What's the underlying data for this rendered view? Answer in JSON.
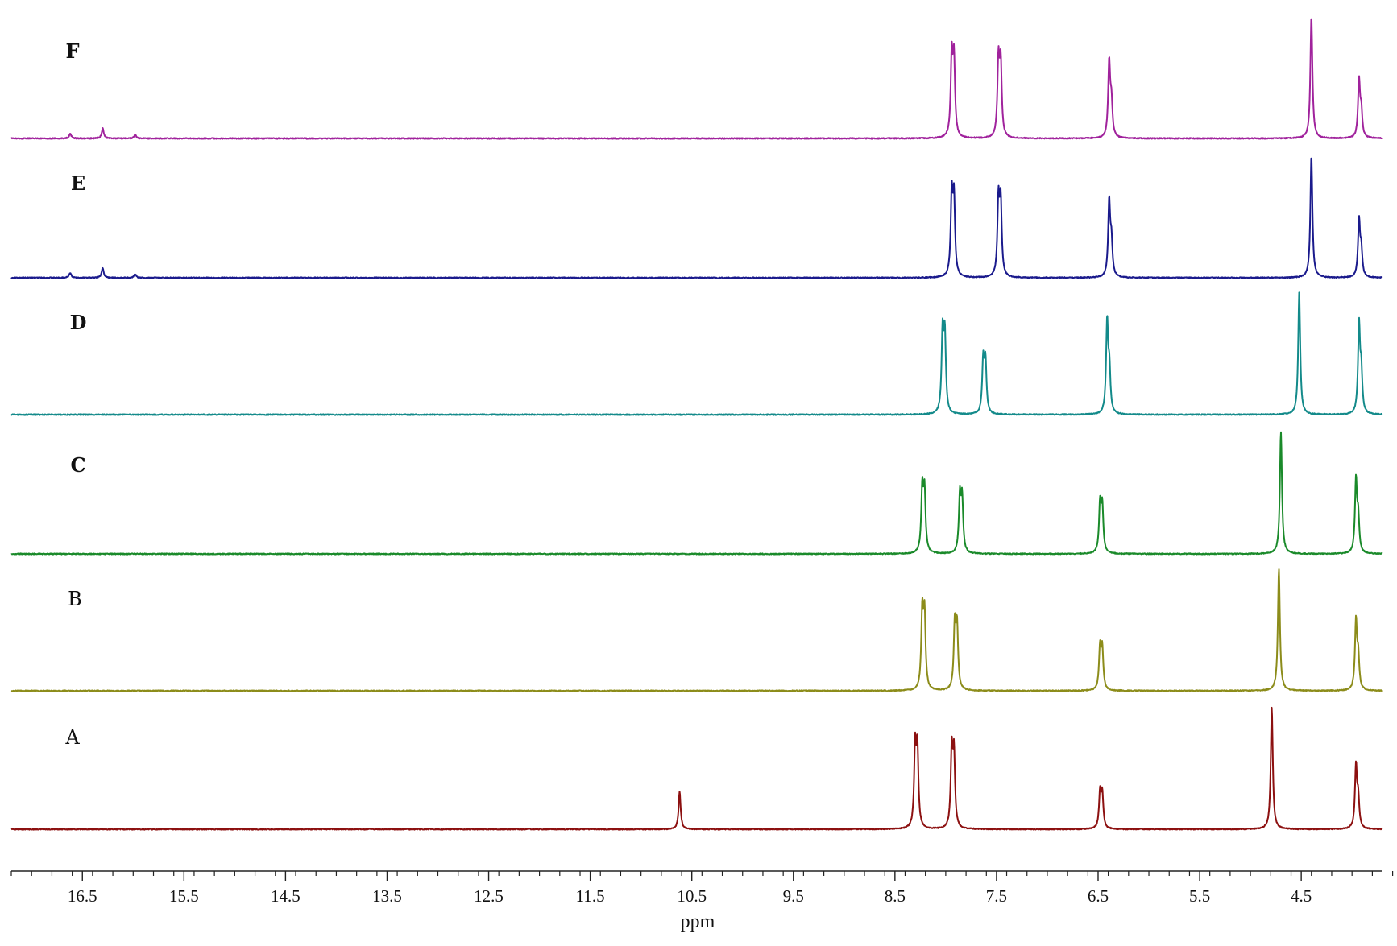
{
  "chart_data": {
    "type": "line",
    "xlabel": "ppm",
    "xlim": [
      17.2,
      3.7
    ],
    "x_reversed": true,
    "x_tick_labels": [
      "16.5",
      "15.5",
      "14.5",
      "13.5",
      "12.5",
      "11.5",
      "10.5",
      "9.5",
      "8.5",
      "7.5",
      "6.5",
      "5.5",
      "4.5"
    ],
    "x_tick_values": [
      16.5,
      15.5,
      14.5,
      13.5,
      12.5,
      11.5,
      10.5,
      9.5,
      8.5,
      7.5,
      6.5,
      5.5,
      4.5
    ],
    "x_minor_tick_step": 0.2,
    "grid": false,
    "legend": "none",
    "series": [
      {
        "name": "F",
        "color": "#a0229c",
        "bold_label": true,
        "peaks": [
          {
            "ppm": 16.62,
            "intensity": 0.04
          },
          {
            "ppm": 16.3,
            "intensity": 0.08
          },
          {
            "ppm": 15.98,
            "intensity": 0.03
          },
          {
            "ppm": 7.93,
            "intensity": 0.63,
            "doublet": true
          },
          {
            "ppm": 7.47,
            "intensity": 0.6,
            "doublet": true
          },
          {
            "ppm": 6.38,
            "intensity": 0.6,
            "doublet": true,
            "asymmetric": true
          },
          {
            "ppm": 4.4,
            "intensity": 0.98
          },
          {
            "ppm": 3.92,
            "intensity": 0.45,
            "doublet": true,
            "asymmetric": true
          }
        ]
      },
      {
        "name": "E",
        "color": "#1a1a8c",
        "bold_label": true,
        "peaks": [
          {
            "ppm": 16.62,
            "intensity": 0.04
          },
          {
            "ppm": 16.3,
            "intensity": 0.08
          },
          {
            "ppm": 15.98,
            "intensity": 0.03
          },
          {
            "ppm": 7.93,
            "intensity": 0.63,
            "doublet": true
          },
          {
            "ppm": 7.47,
            "intensity": 0.6,
            "doublet": true
          },
          {
            "ppm": 6.38,
            "intensity": 0.6,
            "doublet": true,
            "asymmetric": true
          },
          {
            "ppm": 4.4,
            "intensity": 0.98
          },
          {
            "ppm": 3.92,
            "intensity": 0.45,
            "doublet": true,
            "asymmetric": true
          }
        ]
      },
      {
        "name": "D",
        "color": "#138a8a",
        "bold_label": true,
        "peaks": [
          {
            "ppm": 8.02,
            "intensity": 0.63,
            "doublet": true
          },
          {
            "ppm": 7.62,
            "intensity": 0.42,
            "doublet": true
          },
          {
            "ppm": 6.4,
            "intensity": 0.73,
            "doublet": true,
            "asymmetric": true
          },
          {
            "ppm": 4.52,
            "intensity": 0.98
          },
          {
            "ppm": 3.92,
            "intensity": 0.7,
            "doublet": true,
            "asymmetric": true
          }
        ]
      },
      {
        "name": "C",
        "color": "#1a8a2a",
        "bold_label": true,
        "peaks": [
          {
            "ppm": 8.22,
            "intensity": 0.5,
            "doublet": true
          },
          {
            "ppm": 7.85,
            "intensity": 0.44,
            "doublet": true
          },
          {
            "ppm": 6.47,
            "intensity": 0.38,
            "doublet": true
          },
          {
            "ppm": 4.7,
            "intensity": 0.98
          },
          {
            "ppm": 3.95,
            "intensity": 0.58,
            "doublet": true,
            "asymmetric": true
          }
        ]
      },
      {
        "name": "B",
        "color": "#8c8c1a",
        "bold_label": false,
        "peaks": [
          {
            "ppm": 8.22,
            "intensity": 0.61,
            "doublet": true
          },
          {
            "ppm": 7.9,
            "intensity": 0.51,
            "doublet": true
          },
          {
            "ppm": 6.47,
            "intensity": 0.33,
            "doublet": true
          },
          {
            "ppm": 4.72,
            "intensity": 0.98
          },
          {
            "ppm": 3.95,
            "intensity": 0.55,
            "doublet": true,
            "asymmetric": true
          }
        ]
      },
      {
        "name": "A",
        "color": "#8c1010",
        "bold_label": false,
        "peaks": [
          {
            "ppm": 10.62,
            "intensity": 0.3
          },
          {
            "ppm": 8.29,
            "intensity": 0.63,
            "doublet": true
          },
          {
            "ppm": 7.93,
            "intensity": 0.6,
            "doublet": true
          },
          {
            "ppm": 6.47,
            "intensity": 0.28,
            "doublet": true
          },
          {
            "ppm": 4.79,
            "intensity": 0.98
          },
          {
            "ppm": 3.95,
            "intensity": 0.5,
            "doublet": true,
            "asymmetric": true
          }
        ]
      }
    ]
  }
}
